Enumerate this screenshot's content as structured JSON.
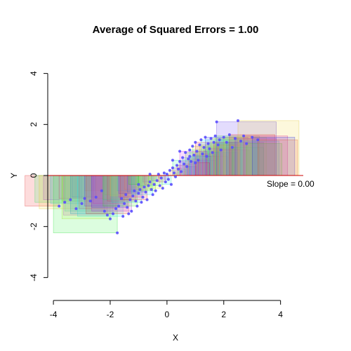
{
  "chart_data": {
    "type": "scatter",
    "title": "Average of Squared Errors = 1.00",
    "xlabel": "X",
    "ylabel": "Y",
    "xlim": [
      -4.2,
      4.8
    ],
    "ylim": [
      -4.1,
      4.1
    ],
    "xticks": [
      "-4",
      "-2",
      "0",
      "2",
      "4"
    ],
    "yticks": [
      "-4",
      "-2",
      "0",
      "2",
      "4"
    ],
    "grid": false,
    "fit_line": {
      "slope": 0.0,
      "intercept": 0.0,
      "color": "#cc0000"
    },
    "annotation": "Slope = 0.00",
    "point_color": "#5a4dff",
    "points": [
      [
        -3.8,
        -1.2
      ],
      [
        -3.6,
        -1.05
      ],
      [
        -3.4,
        -0.95
      ],
      [
        -3.2,
        -1.3
      ],
      [
        -3.0,
        -1.1
      ],
      [
        -2.9,
        -0.9
      ],
      [
        -2.7,
        -1.0
      ],
      [
        -2.5,
        -0.85
      ],
      [
        -2.3,
        -0.6
      ],
      [
        -2.2,
        -1.4
      ],
      [
        -2.1,
        -1.55
      ],
      [
        -2.0,
        -1.7
      ],
      [
        -1.9,
        -1.5
      ],
      [
        -1.8,
        -1.3
      ],
      [
        -1.75,
        -2.25
      ],
      [
        -1.7,
        -1.2
      ],
      [
        -1.6,
        -0.9
      ],
      [
        -1.55,
        -1.6
      ],
      [
        -1.5,
        -1.1
      ],
      [
        -1.45,
        -0.75
      ],
      [
        -1.4,
        -1.25
      ],
      [
        -1.35,
        -1.5
      ],
      [
        -1.3,
        -0.95
      ],
      [
        -1.25,
        -1.4
      ],
      [
        -1.2,
        -0.8
      ],
      [
        -1.15,
        -0.6
      ],
      [
        -1.1,
        -1.0
      ],
      [
        -1.05,
        -1.2
      ],
      [
        -1.0,
        -0.7
      ],
      [
        -0.95,
        -0.55
      ],
      [
        -0.9,
        -1.05
      ],
      [
        -0.85,
        -0.85
      ],
      [
        -0.8,
        -0.45
      ],
      [
        -0.75,
        -0.65
      ],
      [
        -0.7,
        -0.95
      ],
      [
        -0.65,
        -0.4
      ],
      [
        -0.6,
        -0.25
      ],
      [
        -0.55,
        -0.55
      ],
      [
        -0.5,
        -0.75
      ],
      [
        -0.45,
        -0.35
      ],
      [
        -0.4,
        -0.6
      ],
      [
        -0.35,
        -0.2
      ],
      [
        -0.3,
        0.05
      ],
      [
        -0.25,
        -0.4
      ],
      [
        -0.2,
        -0.1
      ],
      [
        -0.15,
        -0.5
      ],
      [
        -0.1,
        0.1
      ],
      [
        -0.05,
        -0.25
      ],
      [
        0.0,
        0.05
      ],
      [
        0.05,
        -0.15
      ],
      [
        0.1,
        0.2
      ],
      [
        0.15,
        -0.35
      ],
      [
        0.2,
        0.3
      ],
      [
        0.25,
        0.1
      ],
      [
        0.3,
        -0.05
      ],
      [
        0.35,
        0.4
      ],
      [
        0.4,
        0.25
      ],
      [
        0.45,
        0.55
      ],
      [
        0.5,
        0.15
      ],
      [
        0.55,
        0.7
      ],
      [
        0.6,
        0.45
      ],
      [
        0.65,
        0.9
      ],
      [
        0.7,
        0.35
      ],
      [
        0.75,
        0.65
      ],
      [
        0.8,
        1.0
      ],
      [
        0.85,
        0.55
      ],
      [
        0.9,
        1.15
      ],
      [
        0.95,
        0.8
      ],
      [
        1.0,
        1.3
      ],
      [
        1.05,
        0.95
      ],
      [
        1.1,
        0.6
      ],
      [
        1.15,
        1.2
      ],
      [
        1.2,
        1.4
      ],
      [
        1.25,
        0.85
      ],
      [
        1.3,
        1.1
      ],
      [
        1.35,
        1.5
      ],
      [
        1.4,
        0.75
      ],
      [
        1.45,
        1.25
      ],
      [
        1.5,
        1.05
      ],
      [
        1.55,
        1.45
      ],
      [
        1.6,
        0.9
      ],
      [
        1.65,
        1.3
      ],
      [
        1.7,
        1.55
      ],
      [
        1.75,
        2.1
      ],
      [
        1.8,
        1.2
      ],
      [
        1.85,
        1.4
      ],
      [
        1.9,
        1.0
      ],
      [
        2.0,
        1.5
      ],
      [
        2.1,
        1.3
      ],
      [
        2.2,
        1.6
      ],
      [
        2.3,
        1.1
      ],
      [
        2.4,
        1.45
      ],
      [
        2.5,
        2.15
      ],
      [
        2.6,
        1.35
      ],
      [
        2.7,
        1.55
      ],
      [
        2.8,
        1.25
      ],
      [
        3.0,
        1.5
      ],
      [
        3.2,
        1.4
      ],
      [
        0.2,
        0.6
      ],
      [
        0.45,
        0.95
      ],
      [
        -0.6,
        0.05
      ],
      [
        0.8,
        0.75
      ],
      [
        1.0,
        0.5
      ],
      [
        -1.0,
        -0.35
      ]
    ]
  }
}
